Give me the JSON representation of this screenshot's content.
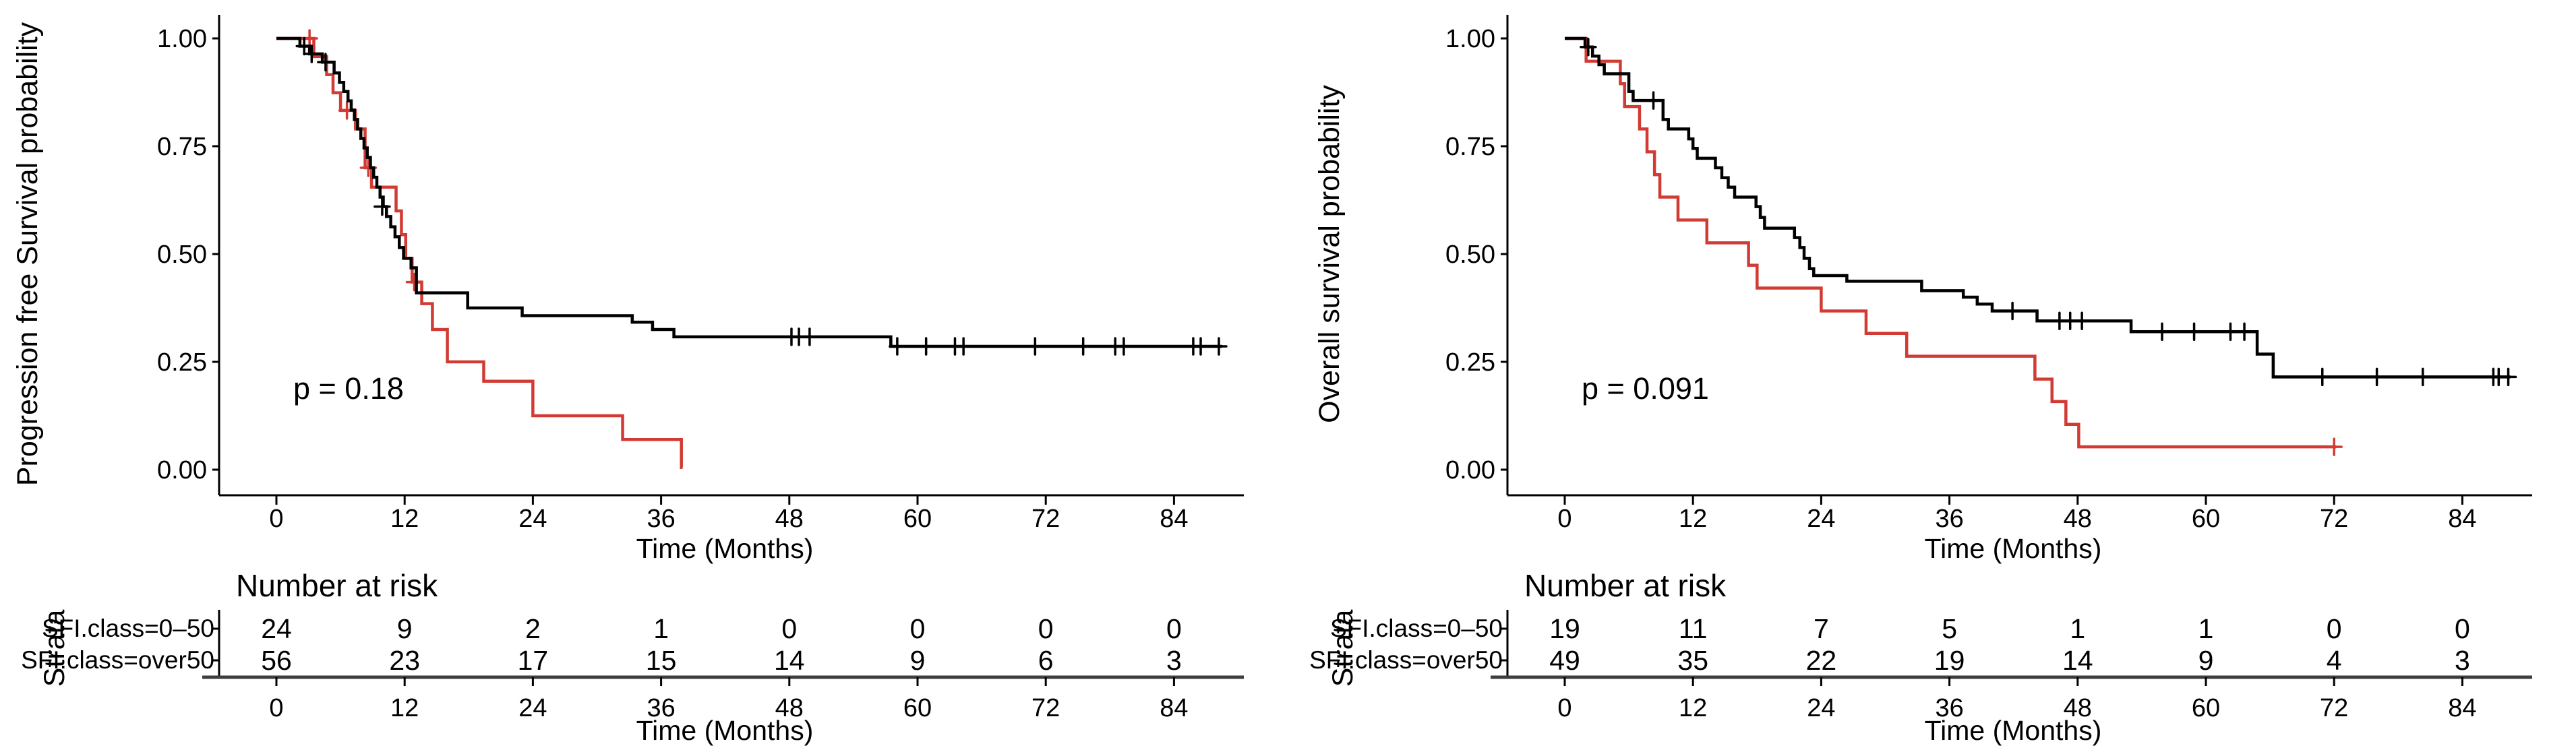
{
  "colors": {
    "red": "#D23B34",
    "black": "#000000",
    "axis": "#000000",
    "risk_axis": "#3d3d3d",
    "text": "#000000"
  },
  "panels": [
    {
      "y_axis_title": "Progression free Survival probability",
      "p_value_label": "p = 0.18",
      "x_axis_title": "Time (Months)",
      "y_tick_labels": [
        "1.00",
        "0.75",
        "0.50",
        "0.25",
        "0.00"
      ],
      "x_tick_labels": [
        "0",
        "12",
        "24",
        "36",
        "48",
        "60",
        "72",
        "84"
      ],
      "risk_table": {
        "title": "Number at risk",
        "axis_label": "Strata",
        "x_axis_title": "Time (Months)",
        "rows": [
          {
            "label": "SFI.class=0–50",
            "color": "red",
            "counts": [
              "24",
              "9",
              "2",
              "1",
              "0",
              "0",
              "0",
              "0"
            ]
          },
          {
            "label": "SFI.class=over50",
            "color": "black",
            "counts": [
              "56",
              "23",
              "17",
              "15",
              "14",
              "9",
              "6",
              "3"
            ]
          }
        ]
      }
    },
    {
      "y_axis_title": "Overall survival probability",
      "p_value_label": "p = 0.091",
      "x_axis_title": "Time (Months)",
      "y_tick_labels": [
        "1.00",
        "0.75",
        "0.50",
        "0.25",
        "0.00"
      ],
      "x_tick_labels": [
        "0",
        "12",
        "24",
        "36",
        "48",
        "60",
        "72",
        "84"
      ],
      "risk_table": {
        "title": "Number at risk",
        "axis_label": "Strata",
        "x_axis_title": "Time (Months)",
        "rows": [
          {
            "label": "SFI.class=0–50",
            "color": "red",
            "counts": [
              "19",
              "11",
              "7",
              "5",
              "1",
              "1",
              "0",
              "0"
            ]
          },
          {
            "label": "SFI.class=over50",
            "color": "black",
            "counts": [
              "49",
              "35",
              "22",
              "19",
              "14",
              "9",
              "4",
              "3"
            ]
          }
        ]
      }
    }
  ],
  "chart_data": [
    {
      "type": "line",
      "subtype": "kaplan-meier-step",
      "title": "",
      "xlabel": "Time (Months)",
      "ylabel": "Progression free Survival probability",
      "p_value": "p = 0.18",
      "xlim": [
        0,
        88.5
      ],
      "ylim": [
        0,
        1
      ],
      "x_ticks": [
        0,
        12,
        24,
        36,
        48,
        60,
        72,
        84
      ],
      "y_ticks": [
        1.0,
        0.75,
        0.5,
        0.25,
        0.0
      ],
      "grid": false,
      "legend_position": "none",
      "series": [
        {
          "name": "SFI.class=0–50",
          "color": "red",
          "start": [
            0,
            1.0
          ],
          "steps": [
            [
              3.5,
              0.958
            ],
            [
              4.7,
              0.916
            ],
            [
              5.3,
              0.874
            ],
            [
              6.0,
              0.833
            ],
            [
              7.4,
              0.79
            ],
            [
              8.3,
              0.7
            ],
            [
              8.9,
              0.655
            ],
            [
              11.2,
              0.6
            ],
            [
              11.7,
              0.545
            ],
            [
              12.1,
              0.49
            ],
            [
              12.7,
              0.435
            ],
            [
              13.6,
              0.385
            ],
            [
              14.6,
              0.325
            ],
            [
              16.0,
              0.25
            ],
            [
              19.4,
              0.205
            ],
            [
              24.0,
              0.125
            ],
            [
              32.4,
              0.07
            ],
            [
              37.9,
              0.005
            ]
          ],
          "end": 38.0,
          "censors": [
            [
              3.1,
              1.0
            ],
            [
              6.6,
              0.833
            ],
            [
              8.6,
              0.7
            ],
            [
              12.9,
              0.435
            ]
          ],
          "number_at_risk": [
            24,
            9,
            2,
            1,
            0,
            0,
            0,
            0
          ]
        },
        {
          "name": "SFI.class=over50",
          "color": "black",
          "start": [
            0,
            1.0
          ],
          "steps": [
            [
              2.2,
              0.982
            ],
            [
              3.1,
              0.964
            ],
            [
              4.3,
              0.945
            ],
            [
              5.4,
              0.92
            ],
            [
              5.9,
              0.898
            ],
            [
              6.3,
              0.877
            ],
            [
              6.7,
              0.855
            ],
            [
              7.0,
              0.834
            ],
            [
              7.3,
              0.812
            ],
            [
              7.6,
              0.79
            ],
            [
              7.9,
              0.768
            ],
            [
              8.2,
              0.746
            ],
            [
              8.5,
              0.724
            ],
            [
              8.8,
              0.7
            ],
            [
              9.1,
              0.678
            ],
            [
              9.4,
              0.655
            ],
            [
              9.7,
              0.632
            ],
            [
              10.0,
              0.61
            ],
            [
              10.3,
              0.587
            ],
            [
              10.7,
              0.563
            ],
            [
              11.1,
              0.54
            ],
            [
              11.5,
              0.515
            ],
            [
              11.9,
              0.49
            ],
            [
              12.6,
              0.468
            ],
            [
              13.1,
              0.41
            ],
            [
              17.9,
              0.375
            ],
            [
              23.0,
              0.357
            ],
            [
              33.3,
              0.342
            ],
            [
              35.2,
              0.325
            ],
            [
              37.2,
              0.308
            ],
            [
              57.5,
              0.286
            ]
          ],
          "end": 88.5,
          "censors": [
            [
              2.6,
              0.982
            ],
            [
              3.3,
              0.964
            ],
            [
              4.6,
              0.945
            ],
            [
              9.9,
              0.61
            ],
            [
              48.2,
              0.308
            ],
            [
              48.9,
              0.308
            ],
            [
              49.9,
              0.308
            ],
            [
              58.1,
              0.286
            ],
            [
              60.8,
              0.286
            ],
            [
              63.5,
              0.286
            ],
            [
              64.3,
              0.286
            ],
            [
              71.0,
              0.286
            ],
            [
              75.5,
              0.286
            ],
            [
              78.5,
              0.286
            ],
            [
              79.3,
              0.286
            ],
            [
              85.8,
              0.286
            ],
            [
              86.5,
              0.286
            ],
            [
              88.2,
              0.286
            ]
          ],
          "number_at_risk": [
            56,
            23,
            17,
            15,
            14,
            9,
            6,
            3
          ]
        }
      ]
    },
    {
      "type": "line",
      "subtype": "kaplan-meier-step",
      "title": "",
      "xlabel": "Time (Months)",
      "ylabel": "Overall survival probability",
      "p_value": "p = 0.091",
      "xlim": [
        0,
        88.5
      ],
      "ylim": [
        0,
        1
      ],
      "x_ticks": [
        0,
        12,
        24,
        36,
        48,
        60,
        72,
        84
      ],
      "y_ticks": [
        1.0,
        0.75,
        0.5,
        0.25,
        0.0
      ],
      "grid": false,
      "legend_position": "none",
      "series": [
        {
          "name": "SFI.class=0–50",
          "color": "red",
          "start": [
            0,
            1.0
          ],
          "steps": [
            [
              2.0,
              0.947
            ],
            [
              5.2,
              0.895
            ],
            [
              5.6,
              0.842
            ],
            [
              7.0,
              0.79
            ],
            [
              7.7,
              0.737
            ],
            [
              8.4,
              0.684
            ],
            [
              8.9,
              0.632
            ],
            [
              10.6,
              0.579
            ],
            [
              13.3,
              0.526
            ],
            [
              17.2,
              0.474
            ],
            [
              18.0,
              0.421
            ],
            [
              24.0,
              0.368
            ],
            [
              28.2,
              0.316
            ],
            [
              32.0,
              0.263
            ],
            [
              44.0,
              0.21
            ],
            [
              45.6,
              0.158
            ],
            [
              46.9,
              0.105
            ],
            [
              48.1,
              0.053
            ]
          ],
          "end": 72.2,
          "censors": [
            [
              72.0,
              0.053
            ]
          ],
          "number_at_risk": [
            19,
            11,
            7,
            5,
            1,
            1,
            0,
            0
          ]
        },
        {
          "name": "SFI.class=over50",
          "color": "black",
          "start": [
            0,
            1.0
          ],
          "steps": [
            [
              1.9,
              0.98
            ],
            [
              2.6,
              0.959
            ],
            [
              3.2,
              0.939
            ],
            [
              3.7,
              0.918
            ],
            [
              6.0,
              0.877
            ],
            [
              6.4,
              0.856
            ],
            [
              9.2,
              0.812
            ],
            [
              9.7,
              0.79
            ],
            [
              11.6,
              0.767
            ],
            [
              12.0,
              0.745
            ],
            [
              12.4,
              0.722
            ],
            [
              14.1,
              0.7
            ],
            [
              14.7,
              0.677
            ],
            [
              15.3,
              0.655
            ],
            [
              15.9,
              0.632
            ],
            [
              17.9,
              0.61
            ],
            [
              18.3,
              0.585
            ],
            [
              18.7,
              0.56
            ],
            [
              21.5,
              0.538
            ],
            [
              22.0,
              0.515
            ],
            [
              22.4,
              0.49
            ],
            [
              22.9,
              0.466
            ],
            [
              23.3,
              0.45
            ],
            [
              26.4,
              0.437
            ],
            [
              33.4,
              0.415
            ],
            [
              37.3,
              0.4
            ],
            [
              38.6,
              0.384
            ],
            [
              40.0,
              0.368
            ],
            [
              44.2,
              0.345
            ],
            [
              53.0,
              0.32
            ],
            [
              64.8,
              0.268
            ],
            [
              66.3,
              0.215
            ]
          ],
          "end": 88.5,
          "censors": [
            [
              2.2,
              0.98
            ],
            [
              8.3,
              0.856
            ],
            [
              41.9,
              0.368
            ],
            [
              46.3,
              0.345
            ],
            [
              47.3,
              0.345
            ],
            [
              48.4,
              0.345
            ],
            [
              55.9,
              0.32
            ],
            [
              58.9,
              0.32
            ],
            [
              62.3,
              0.32
            ],
            [
              63.6,
              0.32
            ],
            [
              70.9,
              0.215
            ],
            [
              76.0,
              0.215
            ],
            [
              80.3,
              0.215
            ],
            [
              86.9,
              0.215
            ],
            [
              87.4,
              0.215
            ],
            [
              88.3,
              0.215
            ]
          ],
          "number_at_risk": [
            49,
            35,
            22,
            19,
            14,
            9,
            4,
            3
          ]
        }
      ]
    }
  ]
}
